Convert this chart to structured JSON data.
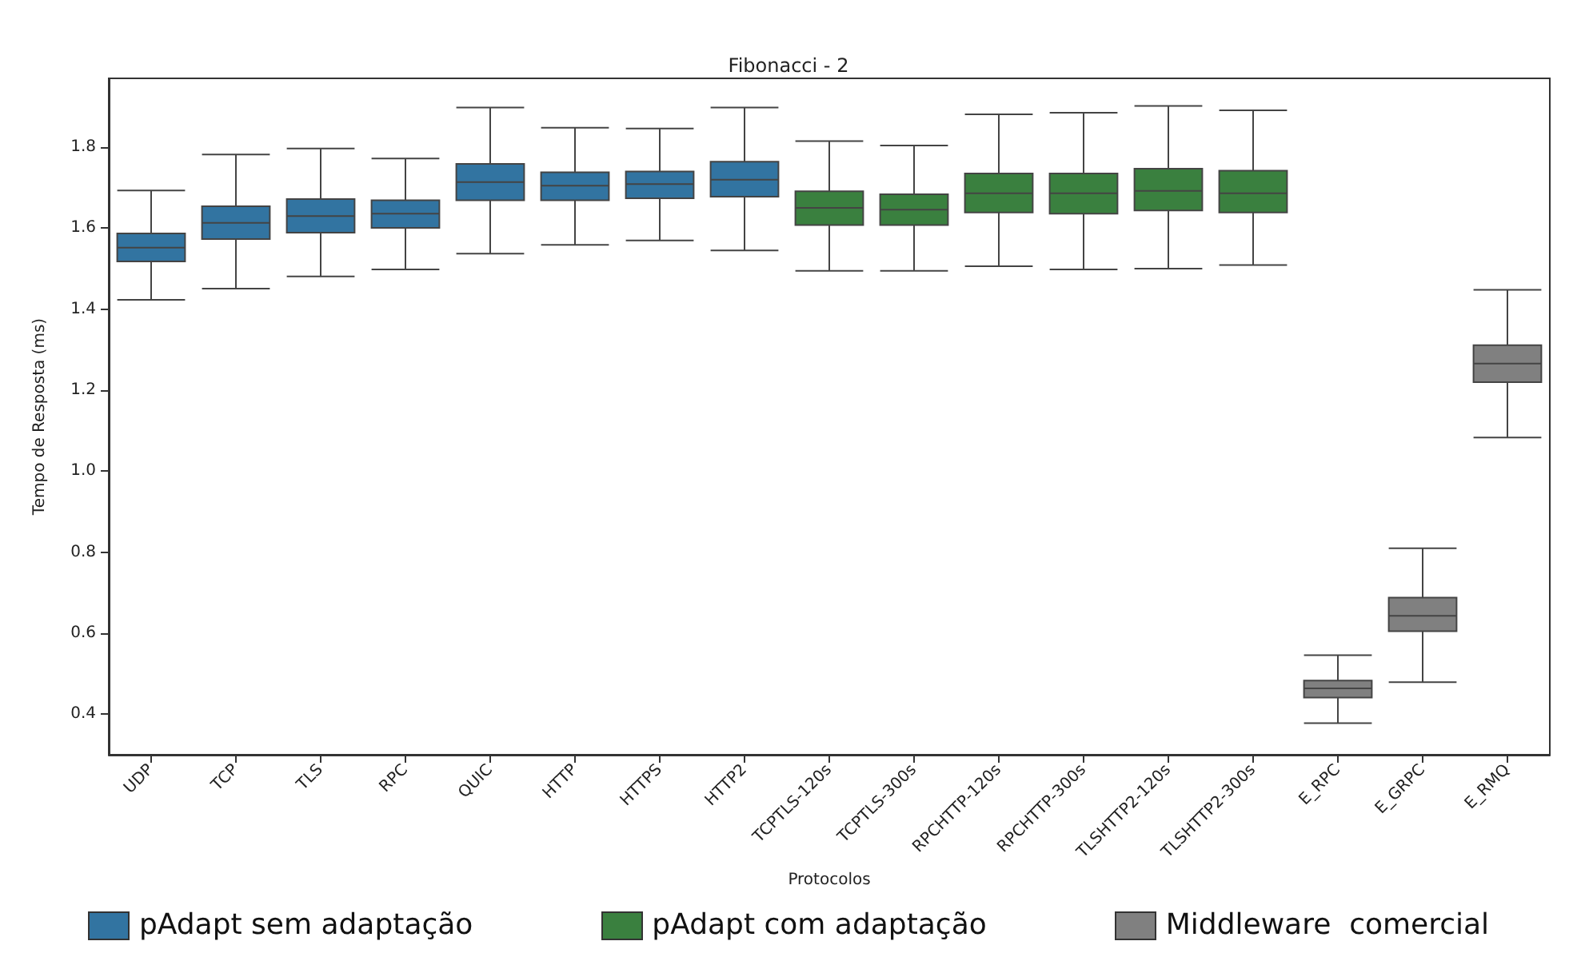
{
  "chart_data": {
    "type": "box",
    "title": "Fibonacci - 2",
    "xlabel": "Protocolos",
    "ylabel": "Tempo de Resposta (ms)",
    "categories": [
      "UDP",
      "TCP",
      "TLS",
      "RPC",
      "QUIC",
      "HTTP",
      "HTTPS",
      "HTTP2",
      "TCPTLS-120s",
      "TCPTLS-300s",
      "RPCHTTP-120s",
      "RPCHTTP-300s",
      "TLSHTTP2-120s",
      "TLSHTTP2-300s",
      "E_RPC",
      "E_GRPC",
      "E_RMQ"
    ],
    "ylim": [
      0.3,
      1.97
    ],
    "yticks": [
      0.4,
      0.6,
      0.8,
      {
        "value": 1.0,
        "label": "1.0"
      },
      1.2,
      1.4,
      1.6,
      1.8
    ],
    "grid": false,
    "colors": [
      "#3274a1",
      "#3274a1",
      "#3274a1",
      "#3274a1",
      "#3274a1",
      "#3274a1",
      "#3274a1",
      "#3274a1",
      "#3a803f",
      "#3a803f",
      "#3a803f",
      "#3a803f",
      "#3a803f",
      "#3a803f",
      "#808080",
      "#808080",
      "#808080"
    ],
    "boxes": [
      {
        "low": 1.423,
        "q1": 1.518,
        "median": 1.552,
        "q3": 1.587,
        "high": 1.693
      },
      {
        "low": 1.451,
        "q1": 1.573,
        "median": 1.613,
        "q3": 1.654,
        "high": 1.782
      },
      {
        "low": 1.481,
        "q1": 1.589,
        "median": 1.63,
        "q3": 1.672,
        "high": 1.797
      },
      {
        "low": 1.498,
        "q1": 1.601,
        "median": 1.636,
        "q3": 1.669,
        "high": 1.772
      },
      {
        "low": 1.537,
        "q1": 1.669,
        "median": 1.714,
        "q3": 1.759,
        "high": 1.898
      },
      {
        "low": 1.559,
        "q1": 1.669,
        "median": 1.705,
        "q3": 1.738,
        "high": 1.848
      },
      {
        "low": 1.57,
        "q1": 1.674,
        "median": 1.709,
        "q3": 1.74,
        "high": 1.846
      },
      {
        "low": 1.545,
        "q1": 1.678,
        "median": 1.72,
        "q3": 1.764,
        "high": 1.898
      },
      {
        "low": 1.495,
        "q1": 1.608,
        "median": 1.65,
        "q3": 1.691,
        "high": 1.815
      },
      {
        "low": 1.495,
        "q1": 1.608,
        "median": 1.646,
        "q3": 1.684,
        "high": 1.804
      },
      {
        "low": 1.506,
        "q1": 1.639,
        "median": 1.686,
        "q3": 1.735,
        "high": 1.881
      },
      {
        "low": 1.498,
        "q1": 1.636,
        "median": 1.686,
        "q3": 1.735,
        "high": 1.885
      },
      {
        "low": 1.5,
        "q1": 1.644,
        "median": 1.692,
        "q3": 1.747,
        "high": 1.902
      },
      {
        "low": 1.509,
        "q1": 1.639,
        "median": 1.686,
        "q3": 1.742,
        "high": 1.891
      },
      {
        "low": 0.378,
        "q1": 0.441,
        "median": 0.464,
        "q3": 0.483,
        "high": 0.546
      },
      {
        "low": 0.479,
        "q1": 0.605,
        "median": 0.643,
        "q3": 0.688,
        "high": 0.81
      },
      {
        "low": 1.083,
        "q1": 1.22,
        "median": 1.266,
        "q3": 1.311,
        "high": 1.448
      }
    ],
    "annotations": [
      "pAdapt sem adaptação",
      "pAdapt com adaptação",
      "Middleware  comercial"
    ]
  }
}
